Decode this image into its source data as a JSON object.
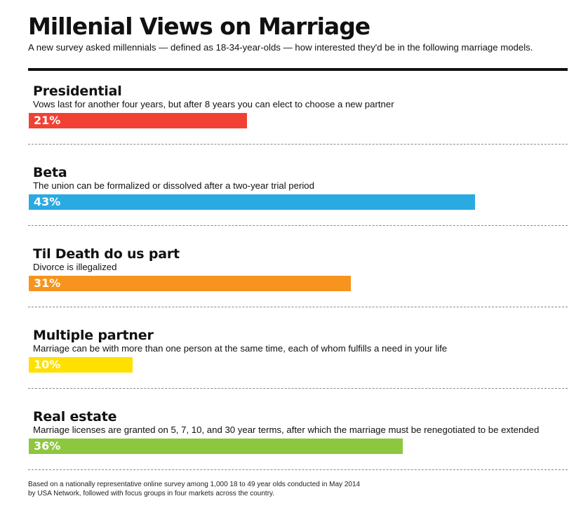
{
  "chart_data": {
    "type": "bar",
    "orientation": "horizontal",
    "title": "Millenial Views on Marriage",
    "subtitle": "A new survey asked millennials — defined as 18-34-year-olds — how interested they'd be in the following marriage models.",
    "xlim": [
      0,
      50
    ],
    "grid": false,
    "categories": [
      "Presidential",
      "Beta",
      "Til Death do us part",
      "Multiple partner",
      "Real estate"
    ],
    "descriptions": [
      "Vows last for another four years, but after 8 years you can elect to choose a new partner",
      "The union can be formalized or dissolved after a two-year trial period",
      "Divorce is illegalized",
      "Marriage can be with more than one person at the same time, each of whom fulfills a need in your life",
      "Marriage licenses are granted on 5, 7, 10, and 30 year terms, after which the marriage must be renegotiated to be extended"
    ],
    "values": [
      21,
      43,
      31,
      10,
      36
    ],
    "value_labels": [
      "21%",
      "43%",
      "31%",
      "10%",
      "36%"
    ],
    "colors": [
      "#f04134",
      "#29abe2",
      "#f7941d",
      "#ffe000",
      "#8dc63f"
    ],
    "footnote_lines": [
      "Based on a nationally representative online survey among 1,000 18 to 49 year olds conducted in May 2014",
      "by USA Network, followed with focus groups in four markets across the country."
    ]
  }
}
